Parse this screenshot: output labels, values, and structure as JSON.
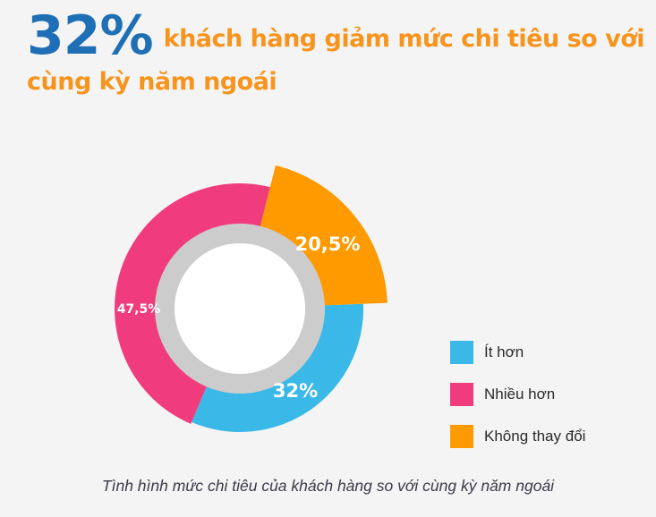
{
  "headline": {
    "percent": "32%",
    "text_line1": "khách hàng giảm mức chi tiêu so với",
    "text_line2": "cùng kỳ năm ngoái"
  },
  "chart_data": {
    "type": "pie",
    "donut": true,
    "slices": [
      {
        "name": "Ít hơn",
        "value": 32,
        "label": "32%",
        "color": "#3ab8e8"
      },
      {
        "name": "Nhiều hơn",
        "value": 47.5,
        "label": "47,5%",
        "color": "#f03c7c"
      },
      {
        "name": "Không thay đổi",
        "value": 20.5,
        "label": "20,5%",
        "color": "#ff9a00"
      }
    ],
    "legend_position": "right"
  },
  "caption": "Tình hình mức chi tiêu của khách hàng so với cùng kỳ năm ngoái"
}
